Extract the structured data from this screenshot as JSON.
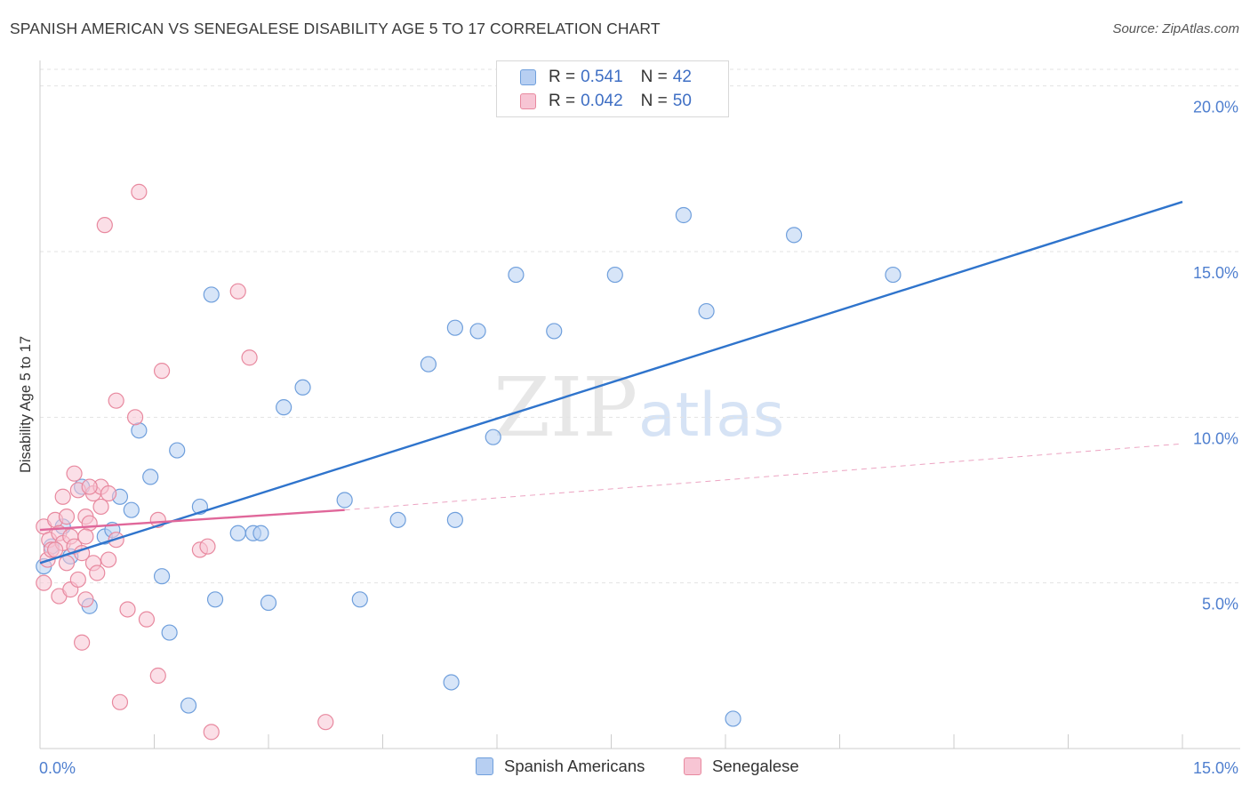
{
  "title": "SPANISH AMERICAN VS SENEGALESE DISABILITY AGE 5 TO 17 CORRELATION CHART",
  "source": "Source: ZipAtlas.com",
  "watermark": {
    "zip": "ZIP",
    "atlas": "atlas"
  },
  "colors": {
    "blue_fill": "#b7cff2",
    "blue_stroke": "#6f9fdc",
    "blue_line": "#2f74cc",
    "pink_fill": "#f7c5d4",
    "pink_stroke": "#e8899f",
    "pink_line": "#e0679a",
    "tick_label": "#4f7fcf",
    "grid": "#e3e3e3"
  },
  "legend_top": [
    {
      "r_label": "R =",
      "r_value": "0.541",
      "n_label": "N =",
      "n_value": "42"
    },
    {
      "r_label": "R =",
      "r_value": "0.042",
      "n_label": "N =",
      "n_value": "50"
    }
  ],
  "legend_bottom": [
    "Spanish Americans",
    "Senegalese"
  ],
  "chart_data": {
    "type": "scatter",
    "title": "SPANISH AMERICAN VS SENEGALESE DISABILITY AGE 5 TO 17 CORRELATION CHART",
    "xlabel": "",
    "ylabel": "Disability Age 5 to 17",
    "xlim": [
      0,
      15
    ],
    "ylim": [
      0,
      20.5
    ],
    "x_tick_labels": [
      "0.0%",
      "15.0%"
    ],
    "y_ticks": [
      5,
      10,
      15,
      20
    ],
    "y_tick_labels": [
      "5.0%",
      "10.0%",
      "15.0%",
      "20.0%"
    ],
    "grid": "horizontal dashed",
    "legend_position": "top-center",
    "series": [
      {
        "name": "Spanish Americans",
        "r": 0.541,
        "n": 42,
        "trend": {
          "x": [
            0,
            15
          ],
          "y": [
            5.6,
            16.5
          ]
        },
        "points": [
          [
            0.05,
            5.5
          ],
          [
            0.15,
            6.1
          ],
          [
            0.3,
            6.7
          ],
          [
            0.4,
            5.8
          ],
          [
            0.55,
            7.9
          ],
          [
            0.65,
            4.3
          ],
          [
            0.85,
            6.4
          ],
          [
            0.95,
            6.6
          ],
          [
            1.05,
            7.6
          ],
          [
            1.2,
            7.2
          ],
          [
            1.3,
            9.6
          ],
          [
            1.45,
            8.2
          ],
          [
            1.6,
            5.2
          ],
          [
            1.7,
            3.5
          ],
          [
            1.8,
            9.0
          ],
          [
            1.95,
            1.3
          ],
          [
            2.1,
            7.3
          ],
          [
            2.25,
            13.7
          ],
          [
            2.3,
            4.5
          ],
          [
            2.6,
            6.5
          ],
          [
            2.8,
            6.5
          ],
          [
            2.9,
            6.5
          ],
          [
            3.0,
            4.4
          ],
          [
            3.2,
            10.3
          ],
          [
            3.45,
            10.9
          ],
          [
            4.0,
            7.5
          ],
          [
            4.2,
            4.5
          ],
          [
            4.7,
            6.9
          ],
          [
            5.1,
            11.6
          ],
          [
            5.4,
            2.0
          ],
          [
            5.45,
            12.7
          ],
          [
            5.45,
            6.9
          ],
          [
            5.75,
            12.6
          ],
          [
            5.95,
            9.4
          ],
          [
            6.25,
            14.3
          ],
          [
            6.75,
            12.6
          ],
          [
            7.55,
            14.3
          ],
          [
            8.45,
            16.1
          ],
          [
            8.75,
            13.2
          ],
          [
            9.1,
            0.9
          ],
          [
            9.9,
            15.5
          ],
          [
            11.2,
            14.3
          ]
        ]
      },
      {
        "name": "Senegalese",
        "r": 0.042,
        "n": 50,
        "trend": {
          "x": [
            0,
            4.0
          ],
          "y": [
            6.6,
            7.2
          ]
        },
        "trend_extension": {
          "x": [
            4.0,
            15
          ],
          "y": [
            7.2,
            9.2
          ]
        },
        "points": [
          [
            0.05,
            6.7
          ],
          [
            0.05,
            5.0
          ],
          [
            0.1,
            5.7
          ],
          [
            0.12,
            6.3
          ],
          [
            0.15,
            6.0
          ],
          [
            0.2,
            6.9
          ],
          [
            0.25,
            6.5
          ],
          [
            0.25,
            4.6
          ],
          [
            0.3,
            6.2
          ],
          [
            0.35,
            7.0
          ],
          [
            0.35,
            5.6
          ],
          [
            0.4,
            6.4
          ],
          [
            0.4,
            4.8
          ],
          [
            0.45,
            8.3
          ],
          [
            0.45,
            6.1
          ],
          [
            0.5,
            7.8
          ],
          [
            0.5,
            5.1
          ],
          [
            0.55,
            5.9
          ],
          [
            0.55,
            3.2
          ],
          [
            0.6,
            7.0
          ],
          [
            0.6,
            4.5
          ],
          [
            0.65,
            6.8
          ],
          [
            0.7,
            7.7
          ],
          [
            0.7,
            5.6
          ],
          [
            0.75,
            5.3
          ],
          [
            0.8,
            7.3
          ],
          [
            0.8,
            7.9
          ],
          [
            0.85,
            15.8
          ],
          [
            0.9,
            5.7
          ],
          [
            1.0,
            10.5
          ],
          [
            1.05,
            1.4
          ],
          [
            1.15,
            4.2
          ],
          [
            1.3,
            16.8
          ],
          [
            1.4,
            3.9
          ],
          [
            1.55,
            2.2
          ],
          [
            1.6,
            11.4
          ],
          [
            1.25,
            10.0
          ],
          [
            1.55,
            6.9
          ],
          [
            2.1,
            6.0
          ],
          [
            2.25,
            0.5
          ],
          [
            2.6,
            13.8
          ],
          [
            2.75,
            11.8
          ],
          [
            3.75,
            0.8
          ],
          [
            2.2,
            6.1
          ],
          [
            0.3,
            7.6
          ],
          [
            0.6,
            6.4
          ],
          [
            0.65,
            7.9
          ],
          [
            0.2,
            6.0
          ],
          [
            0.9,
            7.7
          ],
          [
            1.0,
            6.3
          ]
        ]
      }
    ]
  }
}
